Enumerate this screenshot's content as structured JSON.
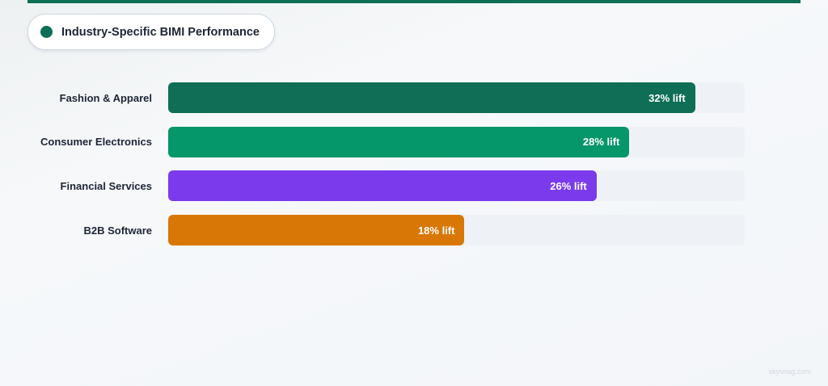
{
  "header": {
    "title": "Industry-Specific BIMI Performance",
    "accent_color": "#0f6e55"
  },
  "chart_data": {
    "type": "bar",
    "orientation": "horizontal",
    "title": "Industry-Specific BIMI Performance",
    "xlabel": "",
    "ylabel": "",
    "categories": [
      "Fashion & Apparel",
      "Consumer Electronics",
      "Financial Services",
      "B2B Software"
    ],
    "values": [
      32,
      28,
      26,
      18
    ],
    "value_labels": [
      "32% lift",
      "28% lift",
      "26% lift",
      "18% lift"
    ],
    "colors": [
      "#0f6e55",
      "#059669",
      "#7c3aed",
      "#d97706"
    ],
    "xlim": [
      0,
      35
    ],
    "grid": false,
    "legend": "none"
  },
  "rows": [
    {
      "label": "Fashion & Apparel",
      "value": 32,
      "value_label": "32% lift",
      "color": "#0f6e55",
      "pct": 91.4
    },
    {
      "label": "Consumer Electronics",
      "value": 28,
      "value_label": "28% lift",
      "color": "#059669",
      "pct": 80.0
    },
    {
      "label": "Financial Services",
      "value": 26,
      "value_label": "26% lift",
      "color": "#7c3aed",
      "pct": 74.3
    },
    {
      "label": "B2B Software",
      "value": 18,
      "value_label": "18% lift",
      "color": "#d97706",
      "pct": 51.4
    }
  ],
  "footer": {
    "watermark": "skysnag.com"
  }
}
